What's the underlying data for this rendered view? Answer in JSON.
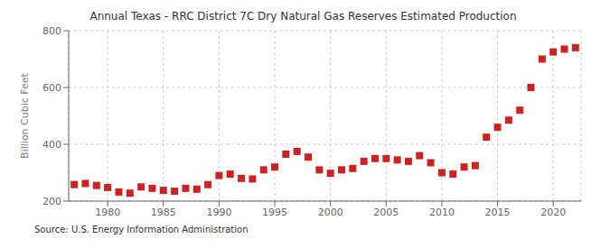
{
  "chart_data": {
    "type": "scatter",
    "title": "Annual Texas - RRC District 7C Dry Natural Gas Reserves Estimated Production",
    "ylabel": "Billion Cubic Feet",
    "annotations": [
      "Source: U.S. Energy Information Administration"
    ],
    "color": "#cc2222",
    "marker": "square",
    "grid": true,
    "xlim": [
      1976.5,
      2022.5
    ],
    "ylim": [
      200,
      800
    ],
    "xticks": [
      1980,
      1985,
      1990,
      1995,
      2000,
      2005,
      2010,
      2015,
      2020
    ],
    "yticks": [
      200,
      400,
      600,
      800
    ],
    "x": [
      1977,
      1978,
      1979,
      1980,
      1981,
      1982,
      1983,
      1984,
      1985,
      1986,
      1987,
      1988,
      1989,
      1990,
      1991,
      1992,
      1993,
      1994,
      1995,
      1996,
      1997,
      1998,
      1999,
      2000,
      2001,
      2002,
      2003,
      2004,
      2005,
      2006,
      2007,
      2008,
      2009,
      2010,
      2011,
      2012,
      2013,
      2014,
      2015,
      2016,
      2017,
      2018,
      2019,
      2020,
      2021,
      2022
    ],
    "values": [
      258,
      262,
      255,
      248,
      232,
      228,
      250,
      245,
      238,
      235,
      245,
      242,
      258,
      290,
      295,
      280,
      278,
      310,
      320,
      365,
      375,
      355,
      310,
      298,
      310,
      315,
      340,
      350,
      350,
      345,
      340,
      360,
      335,
      300,
      295,
      320,
      325,
      425,
      460,
      485,
      520,
      600,
      700,
      725,
      735,
      740
    ]
  }
}
